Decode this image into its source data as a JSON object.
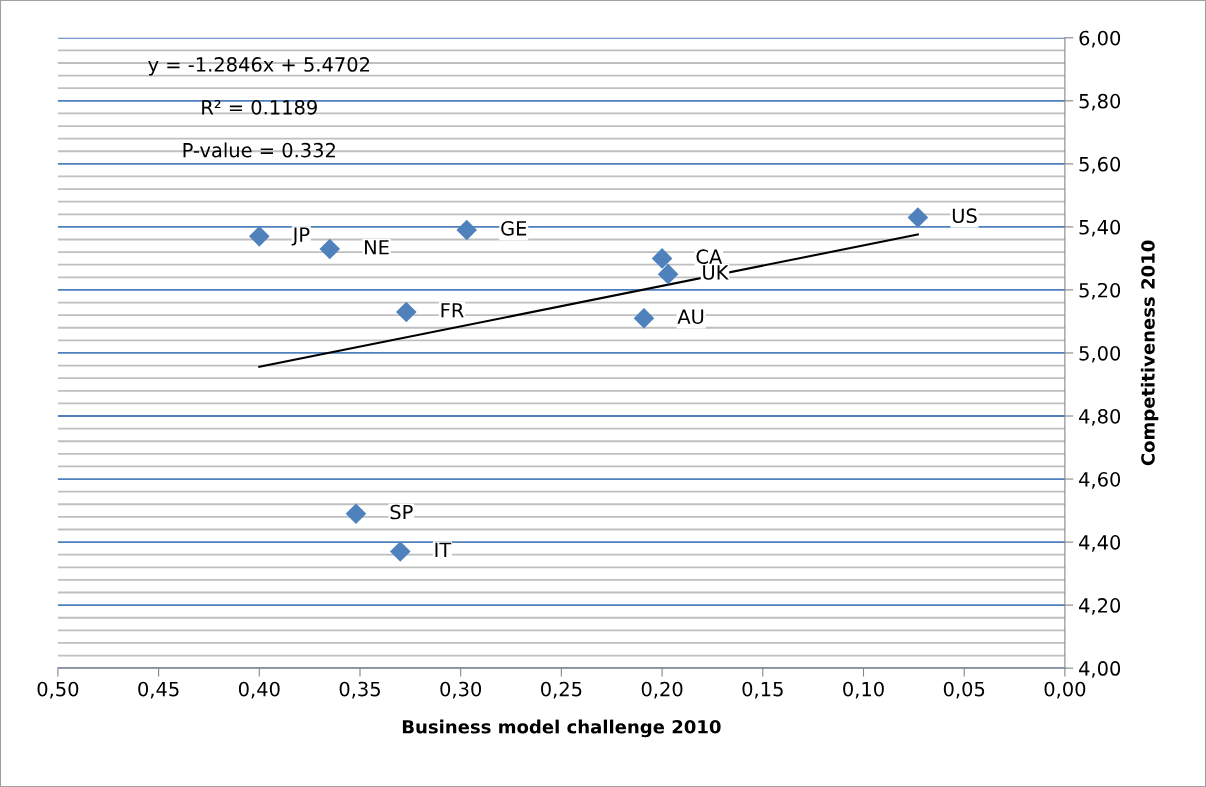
{
  "chart_data": {
    "type": "scatter",
    "xlabel": "Business model challenge 2010",
    "ylabel": "Competitiveness 2010",
    "series": [
      {
        "color": "#4f81bd",
        "marker": "diamond",
        "x": [
          0.4,
          0.365,
          0.297,
          0.2,
          0.197,
          0.327,
          0.209,
          0.073,
          0.352,
          0.33
        ],
        "values": [
          5.37,
          5.33,
          5.39,
          5.3,
          5.25,
          5.13,
          5.11,
          5.43,
          4.49,
          4.37
        ]
      },
      {
        "type": "line",
        "color": "#000000",
        "marker": "none",
        "line_style": "solid",
        "x": [
          0.4,
          0.073
        ],
        "values": [
          4.956,
          5.376
        ]
      }
    ],
    "annotations": [
      {
        "text": "JP",
        "x": 0.4,
        "y": 5.37
      },
      {
        "text": "NE",
        "x": 0.365,
        "y": 5.33
      },
      {
        "text": "GE",
        "x": 0.297,
        "y": 5.39
      },
      {
        "text": "CA",
        "x": 0.2,
        "y": 5.3
      },
      {
        "text": "UK",
        "x": 0.197,
        "y": 5.25
      },
      {
        "text": "FR",
        "x": 0.327,
        "y": 5.13
      },
      {
        "text": "AU",
        "x": 0.209,
        "y": 5.11
      },
      {
        "text": "US",
        "x": 0.073,
        "y": 5.43
      },
      {
        "text": "SP",
        "x": 0.352,
        "y": 4.49
      },
      {
        "text": "IT",
        "x": 0.33,
        "y": 4.37
      },
      "y = -1.2846x + 5.4702",
      "R² = 0.1189",
      "P-value = 0.332"
    ],
    "xlim": [
      0.5,
      0.0
    ],
    "xticks": [
      {
        "value": 0.5,
        "label": "0,50"
      },
      {
        "value": 0.45,
        "label": "0,45"
      },
      {
        "value": 0.4,
        "label": "0,40"
      },
      {
        "value": 0.35,
        "label": "0,35"
      },
      {
        "value": 0.3,
        "label": "0,30"
      },
      {
        "value": 0.25,
        "label": "0,25"
      },
      {
        "value": 0.2,
        "label": "0,20"
      },
      {
        "value": 0.15,
        "label": "0,15"
      },
      {
        "value": 0.1,
        "label": "0,10"
      },
      {
        "value": 0.05,
        "label": "0,05"
      },
      {
        "value": 0.0,
        "label": "0,00"
      }
    ],
    "ylim": [
      4.0,
      6.0
    ],
    "yticks": [
      {
        "value": 4.0,
        "label": "4,00"
      },
      {
        "value": 4.2,
        "label": "4,20"
      },
      {
        "value": 4.4,
        "label": "4,40"
      },
      {
        "value": 4.6,
        "label": "4,60"
      },
      {
        "value": 4.8,
        "label": "4,80"
      },
      {
        "value": 5.0,
        "label": "5,00"
      },
      {
        "value": 5.2,
        "label": "5,20"
      },
      {
        "value": 5.4,
        "label": "5,40"
      },
      {
        "value": 5.6,
        "label": "5,60"
      },
      {
        "value": 5.8,
        "label": "5,80"
      },
      {
        "value": 6.0,
        "label": "6,00"
      }
    ],
    "grid": "y"
  }
}
